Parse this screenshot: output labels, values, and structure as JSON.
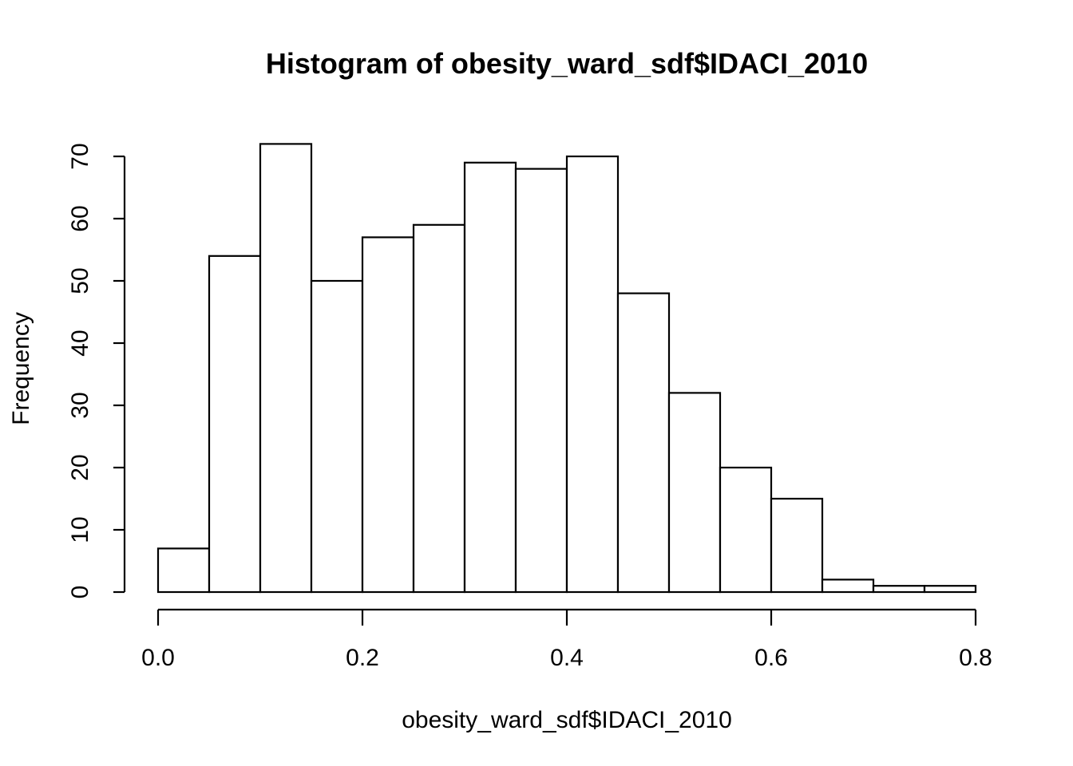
{
  "chart_data": {
    "type": "bar",
    "title": "Histogram of obesity_ward_sdf$IDACI_2010",
    "xlabel": "obesity_ward_sdf$IDACI_2010",
    "ylabel": "Frequency",
    "bin_edges": [
      0.0,
      0.05,
      0.1,
      0.15,
      0.2,
      0.25,
      0.3,
      0.35,
      0.4,
      0.45,
      0.5,
      0.55,
      0.6,
      0.65,
      0.7,
      0.75,
      0.8
    ],
    "values": [
      7,
      54,
      72,
      50,
      57,
      59,
      69,
      68,
      70,
      48,
      32,
      20,
      15,
      2,
      1,
      1
    ],
    "xlim": [
      0.0,
      0.8
    ],
    "ylim": [
      0,
      70
    ],
    "x_ticks": [
      0.0,
      0.2,
      0.4,
      0.6,
      0.8
    ],
    "x_tick_labels": [
      "0.0",
      "0.2",
      "0.4",
      "0.6",
      "0.8"
    ],
    "y_ticks": [
      0,
      10,
      20,
      30,
      40,
      50,
      60,
      70
    ],
    "y_tick_labels": [
      "0",
      "10",
      "20",
      "30",
      "40",
      "50",
      "60",
      "70"
    ],
    "grid": false,
    "legend": "none",
    "bar_fill": "#ffffff",
    "bar_stroke": "#000000"
  }
}
